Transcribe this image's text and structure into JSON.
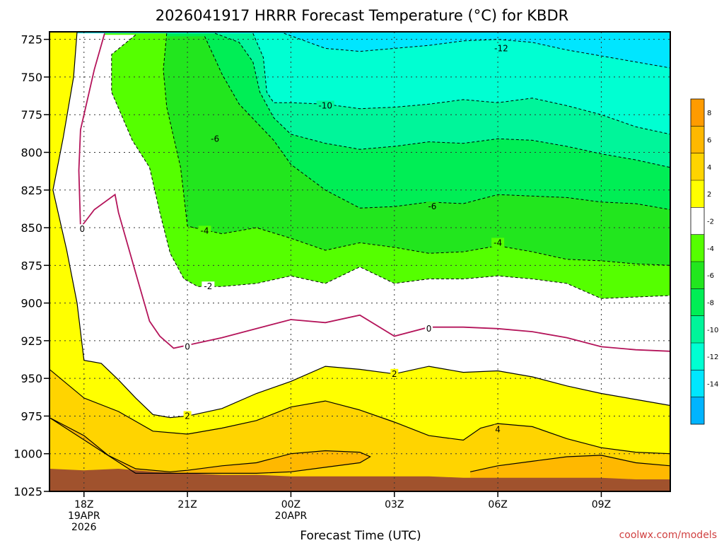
{
  "chart_data": {
    "type": "contour",
    "title": "2026041917 HRRR Forecast Temperature (°C) for KBDR",
    "xlabel": "Forecast Time (UTC)",
    "ylabel": "",
    "y_axis": "pressure (hPa), reversed",
    "ylim": [
      1025,
      720
    ],
    "y_ticks": [
      725,
      750,
      775,
      800,
      825,
      850,
      875,
      900,
      925,
      950,
      975,
      1000,
      1025
    ],
    "x_range_hours": [
      -1,
      17
    ],
    "x_ticks": [
      {
        "label": "18Z",
        "sub1": "19APR",
        "sub2": "2026",
        "hour": 0
      },
      {
        "label": "21Z",
        "sub1": "",
        "sub2": "",
        "hour": 3
      },
      {
        "label": "00Z",
        "sub1": "20APR",
        "sub2": "",
        "hour": 6
      },
      {
        "label": "03Z",
        "sub1": "",
        "sub2": "",
        "hour": 9
      },
      {
        "label": "06Z",
        "sub1": "",
        "sub2": "",
        "hour": 12
      },
      {
        "label": "09Z",
        "sub1": "",
        "sub2": "",
        "hour": 15
      }
    ],
    "grid": true,
    "colorbar": {
      "ticks": [
        8,
        6,
        4,
        2,
        -2,
        -4,
        -6,
        -8,
        -10,
        -12,
        -14
      ],
      "bins": [
        {
          "min": 8,
          "max": 10,
          "color": "#ff9b00"
        },
        {
          "min": 6,
          "max": 8,
          "color": "#ffb800"
        },
        {
          "min": 4,
          "max": 6,
          "color": "#ffd400"
        },
        {
          "min": 2,
          "max": 4,
          "color": "#ffff00"
        },
        {
          "min": -2,
          "max": 2,
          "color": "#ffffff"
        },
        {
          "min": -4,
          "max": -2,
          "color": "#55ff00"
        },
        {
          "min": -6,
          "max": -4,
          "color": "#22e61e"
        },
        {
          "min": -8,
          "max": -6,
          "color": "#00ee55"
        },
        {
          "min": -10,
          "max": -8,
          "color": "#00f59a"
        },
        {
          "min": -12,
          "max": -10,
          "color": "#00ffd2"
        },
        {
          "min": -14,
          "max": -12,
          "color": "#00e6ff"
        },
        {
          "min": -16,
          "max": -14,
          "color": "#00b4ff"
        }
      ]
    },
    "isotherms": {
      "-12": [
        [
          5.8,
          721
        ],
        [
          7,
          731
        ],
        [
          8,
          733
        ],
        [
          9,
          731
        ],
        [
          10,
          729
        ],
        [
          11,
          726
        ],
        [
          12,
          725
        ],
        [
          13,
          727
        ],
        [
          14,
          732
        ],
        [
          15,
          736
        ],
        [
          16,
          740
        ],
        [
          17,
          744
        ]
      ],
      "-10": [
        [
          4.9,
          721
        ],
        [
          5.2,
          737
        ],
        [
          5.3,
          760
        ],
        [
          5.5,
          767
        ],
        [
          6,
          767
        ],
        [
          7,
          768
        ],
        [
          8,
          771
        ],
        [
          9,
          770
        ],
        [
          10,
          768
        ],
        [
          11,
          765
        ],
        [
          12,
          767
        ],
        [
          13,
          764
        ],
        [
          14,
          769
        ],
        [
          15,
          775
        ],
        [
          16,
          783
        ],
        [
          17,
          788
        ]
      ],
      "-8": [
        [
          3.8,
          721
        ],
        [
          4.5,
          727
        ],
        [
          4.9,
          740
        ],
        [
          5.1,
          760
        ],
        [
          5.5,
          777
        ],
        [
          6,
          788
        ],
        [
          7,
          794
        ],
        [
          8,
          798
        ],
        [
          9,
          796
        ],
        [
          10,
          793
        ],
        [
          11,
          794
        ],
        [
          12,
          791
        ],
        [
          13,
          792
        ],
        [
          14,
          796
        ],
        [
          15,
          801
        ],
        [
          16,
          805
        ],
        [
          17,
          810
        ]
      ],
      "-6": [
        [
          3.5,
          723
        ],
        [
          4,
          748
        ],
        [
          4.5,
          768
        ],
        [
          5.5,
          792
        ],
        [
          6,
          808
        ],
        [
          7,
          825
        ],
        [
          8,
          837
        ],
        [
          9,
          836
        ],
        [
          10,
          833
        ],
        [
          11,
          834
        ],
        [
          12,
          828
        ],
        [
          13,
          829
        ],
        [
          14,
          830
        ],
        [
          15,
          833
        ],
        [
          16,
          834
        ],
        [
          17,
          838
        ]
      ],
      "-4": [
        [
          2.4,
          721
        ],
        [
          2.3,
          745
        ],
        [
          2.4,
          770
        ],
        [
          2.8,
          810
        ],
        [
          3,
          849
        ],
        [
          4,
          854
        ],
        [
          5,
          850
        ],
        [
          6,
          857
        ],
        [
          7,
          865
        ],
        [
          8,
          860
        ],
        [
          9,
          863
        ],
        [
          10,
          867
        ],
        [
          11,
          866
        ],
        [
          12,
          862
        ],
        [
          13,
          866
        ],
        [
          14,
          871
        ],
        [
          15,
          872
        ],
        [
          16,
          874
        ],
        [
          17,
          875
        ]
      ],
      "-2": [
        [
          1.5,
          722
        ],
        [
          0.8,
          735
        ],
        [
          0.8,
          760
        ],
        [
          1.4,
          792
        ],
        [
          1.9,
          810
        ],
        [
          2.2,
          840
        ],
        [
          2.5,
          867
        ],
        [
          2.9,
          884
        ],
        [
          3.3,
          889
        ],
        [
          4,
          889
        ],
        [
          5,
          887
        ],
        [
          6,
          882
        ],
        [
          7,
          887
        ],
        [
          8,
          876
        ],
        [
          9,
          887
        ],
        [
          10,
          884
        ],
        [
          11,
          884
        ],
        [
          12,
          882
        ],
        [
          13,
          884
        ],
        [
          14,
          887
        ],
        [
          15,
          897
        ],
        [
          16,
          896
        ],
        [
          17,
          895
        ]
      ],
      "0": [
        [
          0.6,
          721
        ],
        [
          0.3,
          745
        ],
        [
          -0.1,
          785
        ],
        [
          -0.15,
          812
        ],
        [
          -0.1,
          850
        ],
        [
          0.3,
          838
        ],
        [
          0.9,
          828
        ],
        [
          1,
          840
        ],
        [
          1.5,
          880
        ],
        [
          1.9,
          912
        ],
        [
          2.2,
          922
        ],
        [
          2.6,
          930
        ],
        [
          3,
          928
        ],
        [
          4,
          923
        ],
        [
          5,
          917
        ],
        [
          6,
          911
        ],
        [
          7,
          913
        ],
        [
          8,
          908
        ],
        [
          9,
          922
        ],
        [
          10,
          916
        ],
        [
          11,
          916
        ],
        [
          12,
          917
        ],
        [
          13,
          919
        ],
        [
          14,
          923
        ],
        [
          15,
          929
        ],
        [
          16,
          931
        ],
        [
          17,
          932
        ]
      ],
      "2": [
        [
          -0.2,
          720
        ],
        [
          -0.3,
          750
        ],
        [
          -0.6,
          790
        ],
        [
          -0.9,
          825
        ],
        [
          -0.5,
          865
        ],
        [
          -0.2,
          900
        ],
        [
          0,
          938
        ],
        [
          0.5,
          940
        ],
        [
          1,
          951
        ],
        [
          1.5,
          963
        ],
        [
          2,
          974
        ],
        [
          2.5,
          976
        ],
        [
          3,
          975
        ],
        [
          4,
          970
        ],
        [
          5,
          960
        ],
        [
          6,
          952
        ],
        [
          7,
          942
        ],
        [
          8,
          944
        ],
        [
          9,
          947
        ],
        [
          10,
          942
        ],
        [
          11,
          946
        ],
        [
          12,
          945
        ],
        [
          13,
          949
        ],
        [
          14,
          955
        ],
        [
          15,
          960
        ],
        [
          16,
          964
        ],
        [
          17,
          968
        ]
      ],
      "4": [
        [
          -1,
          944
        ],
        [
          0,
          963
        ],
        [
          1,
          972
        ],
        [
          2,
          985
        ],
        [
          3,
          987
        ],
        [
          4,
          983
        ],
        [
          5,
          978
        ],
        [
          6,
          969
        ],
        [
          7,
          965
        ],
        [
          8,
          971
        ],
        [
          9,
          979
        ],
        [
          10,
          988
        ],
        [
          11,
          991
        ],
        [
          11.5,
          983
        ],
        [
          12,
          980
        ],
        [
          13,
          982
        ],
        [
          14,
          990
        ],
        [
          15,
          996
        ],
        [
          16,
          999
        ],
        [
          17,
          1000
        ]
      ],
      "6": [
        [
          -1,
          976
        ],
        [
          0,
          988
        ],
        [
          0.7,
          1001
        ],
        [
          1.5,
          1010
        ],
        [
          2.5,
          1012
        ],
        [
          3,
          1011
        ],
        [
          4,
          1008
        ],
        [
          5,
          1006
        ],
        [
          6,
          1000
        ],
        [
          7,
          998
        ],
        [
          8,
          999
        ],
        [
          8.3,
          1002
        ],
        [
          8,
          1006
        ],
        [
          7,
          1009
        ],
        [
          6,
          1012
        ],
        [
          5,
          1013
        ],
        [
          4,
          1013
        ],
        [
          3,
          1013
        ],
        [
          2,
          1013
        ],
        [
          1.5,
          1013
        ]
      ],
      "6b": [
        [
          11.2,
          1012
        ],
        [
          12,
          1008
        ],
        [
          13,
          1005
        ],
        [
          14,
          1002
        ],
        [
          15,
          1001
        ],
        [
          16,
          1006
        ],
        [
          17,
          1008
        ]
      ]
    },
    "contour_labels": [
      {
        "text": "-12",
        "hour": 12.1,
        "p": 731
      },
      {
        "text": "-10",
        "hour": 7.0,
        "p": 769
      },
      {
        "text": "-6",
        "hour": 3.8,
        "p": 791
      },
      {
        "text": "-6",
        "hour": 10.1,
        "p": 836
      },
      {
        "text": "-4",
        "hour": 3.5,
        "p": 852
      },
      {
        "text": "-4",
        "hour": 12.0,
        "p": 860
      },
      {
        "text": "-2",
        "hour": 3.6,
        "p": 889
      },
      {
        "text": "0",
        "hour": -0.05,
        "p": 851
      },
      {
        "text": "0",
        "hour": 3.0,
        "p": 929
      },
      {
        "text": "0",
        "hour": 10.0,
        "p": 917
      },
      {
        "text": "2",
        "hour": 3.0,
        "p": 975
      },
      {
        "text": "2",
        "hour": 9.0,
        "p": 947
      },
      {
        "text": "4",
        "hour": 12.0,
        "p": 984
      }
    ],
    "surface_pressure": [
      [
        -1,
        1010
      ],
      [
        0,
        1011
      ],
      [
        1,
        1010
      ],
      [
        2,
        1012
      ],
      [
        3,
        1013
      ],
      [
        4,
        1014
      ],
      [
        5,
        1014
      ],
      [
        6,
        1015
      ],
      [
        7,
        1015
      ],
      [
        8,
        1015
      ],
      [
        9,
        1015
      ],
      [
        10,
        1015
      ],
      [
        11,
        1016
      ],
      [
        12,
        1016
      ],
      [
        13,
        1016
      ],
      [
        14,
        1016
      ],
      [
        15,
        1016
      ],
      [
        16,
        1017
      ],
      [
        17,
        1017
      ]
    ],
    "ground_color": "#a0522d"
  },
  "credit": "coolwx.com/models"
}
